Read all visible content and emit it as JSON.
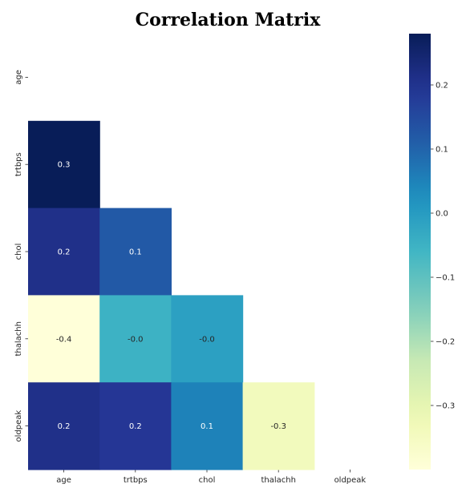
{
  "chart_data": {
    "type": "heatmap",
    "title": "Correlation Matrix",
    "variables": [
      "age",
      "trtbps",
      "chol",
      "thalachh",
      "oldpeak"
    ],
    "mask": "upper-triangle-including-diagonal",
    "cells": [
      {
        "row": "trtbps",
        "col": "age",
        "value": 0.28,
        "label": "0.3"
      },
      {
        "row": "chol",
        "col": "age",
        "value": 0.21,
        "label": "0.2"
      },
      {
        "row": "chol",
        "col": "trtbps",
        "value": 0.12,
        "label": "0.1"
      },
      {
        "row": "thalachh",
        "col": "age",
        "value": -0.4,
        "label": "-0.4"
      },
      {
        "row": "thalachh",
        "col": "trtbps",
        "value": -0.05,
        "label": "-0.0"
      },
      {
        "row": "thalachh",
        "col": "chol",
        "value": -0.01,
        "label": "-0.0"
      },
      {
        "row": "oldpeak",
        "col": "age",
        "value": 0.21,
        "label": "0.2"
      },
      {
        "row": "oldpeak",
        "col": "trtbps",
        "value": 0.19,
        "label": "0.2"
      },
      {
        "row": "oldpeak",
        "col": "chol",
        "value": 0.05,
        "label": "0.1"
      },
      {
        "row": "oldpeak",
        "col": "thalachh",
        "value": -0.34,
        "label": "-0.3"
      }
    ],
    "colormap": "YlGnBu",
    "vmin": -0.4,
    "vmax": 0.28,
    "colorbar_ticks": [
      {
        "value": 0.2,
        "label": "0.2"
      },
      {
        "value": 0.1,
        "label": "0.1"
      },
      {
        "value": 0.0,
        "label": "0.0"
      },
      {
        "value": -0.1,
        "label": "−0.1"
      },
      {
        "value": -0.2,
        "label": "−0.2"
      },
      {
        "value": -0.3,
        "label": "−0.3"
      }
    ]
  }
}
